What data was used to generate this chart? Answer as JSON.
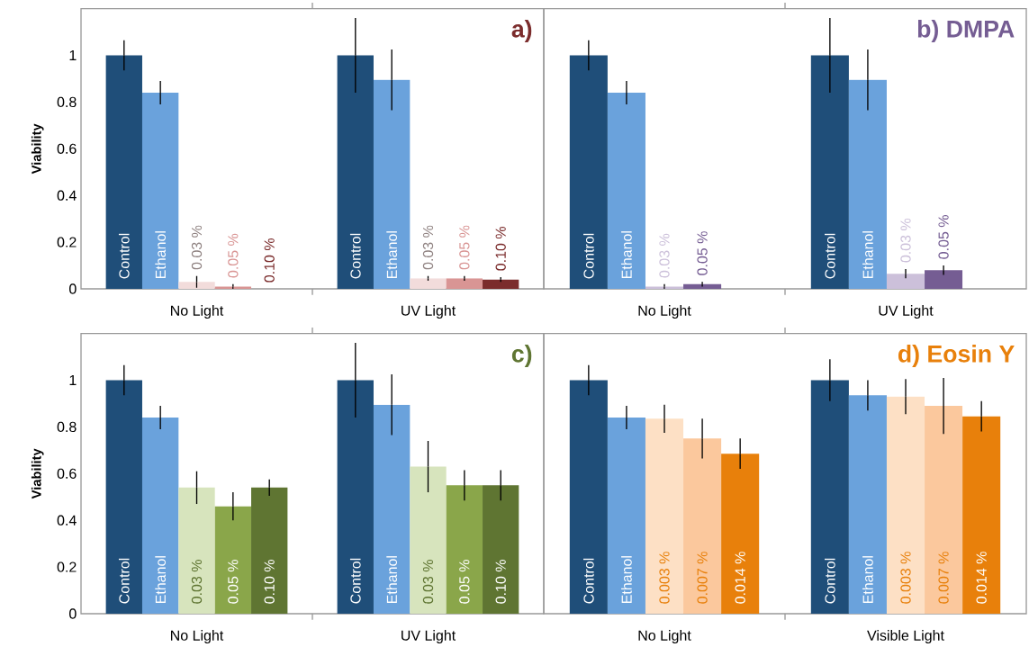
{
  "chart_data": [
    {
      "type": "bar",
      "title": "a)",
      "ylabel": "Viability",
      "categories": [
        "No Light",
        "UV Light"
      ],
      "ylim": [
        0,
        1.2
      ],
      "yticks": [
        0,
        0.2,
        0.4,
        0.6,
        0.8,
        1
      ],
      "series": [
        {
          "name": "Control",
          "color": "#1f4e79",
          "values": [
            1,
            1
          ],
          "errors": [
            0.065,
            0.16
          ]
        },
        {
          "name": "Ethanol",
          "color": "#6aa2dc",
          "values": [
            0.84,
            0.895
          ],
          "errors": [
            0.05,
            0.13
          ]
        },
        {
          "name": "0.03 %",
          "color": "#f2dcdb",
          "values": [
            0.03,
            0.045
          ],
          "errors": [
            0.025,
            0.01
          ]
        },
        {
          "name": "0.05 %",
          "color": "#d99594",
          "values": [
            0.01,
            0.045
          ],
          "errors": [
            0.01,
            0.01
          ]
        },
        {
          "name": "0.10 %",
          "color": "#7b2c2c",
          "values": [
            0,
            0.04
          ],
          "errors": [
            null,
            0.01
          ]
        }
      ]
    },
    {
      "type": "bar",
      "title": "b) DMPA",
      "categories": [
        "No Light",
        "UV Light"
      ],
      "ylim": [
        0,
        1.2
      ],
      "yticks": [
        0,
        0.2,
        0.4,
        0.6,
        0.8,
        1
      ],
      "tick_labels": "x",
      "series": [
        {
          "name": "Control",
          "color": "#1f4e79",
          "values": [
            1,
            1
          ],
          "errors": [
            0.065,
            0.16
          ]
        },
        {
          "name": "Ethanol",
          "color": "#6aa2dc",
          "values": [
            0.84,
            0.895
          ],
          "errors": [
            0.05,
            0.13
          ]
        },
        {
          "name": "0.03 %",
          "color": "#ccc0da",
          "values": [
            0.01,
            0.065
          ],
          "errors": [
            0.01,
            0.02
          ]
        },
        {
          "name": "0.05 %",
          "color": "#755d93",
          "values": [
            0.02,
            0.08
          ],
          "errors": [
            0.01,
            0.02
          ]
        }
      ]
    },
    {
      "type": "bar",
      "title": "c)",
      "ylabel": "Viability",
      "categories": [
        "No Light",
        "UV Light"
      ],
      "ylim": [
        0,
        1.2
      ],
      "yticks": [
        0,
        0.2,
        0.4,
        0.6,
        0.8,
        1
      ],
      "series": [
        {
          "name": "Control",
          "color": "#1f4e79",
          "values": [
            1,
            1
          ],
          "errors": [
            0.065,
            0.16
          ]
        },
        {
          "name": "Ethanol",
          "color": "#6aa2dc",
          "values": [
            0.84,
            0.895
          ],
          "errors": [
            0.05,
            0.13
          ]
        },
        {
          "name": "0.03 %",
          "color": "#d7e4bd",
          "values": [
            0.54,
            0.63
          ],
          "errors": [
            0.07,
            0.11
          ]
        },
        {
          "name": "0.05 %",
          "color": "#8aa64a",
          "values": [
            0.46,
            0.55
          ],
          "errors": [
            0.06,
            0.065
          ]
        },
        {
          "name": "0.10 %",
          "color": "#5f7532",
          "values": [
            0.54,
            0.55
          ],
          "errors": [
            0.035,
            0.065
          ]
        }
      ]
    },
    {
      "type": "bar",
      "title": "d) Eosin Y",
      "categories": [
        "No Light",
        "Visible Light"
      ],
      "ylim": [
        0,
        1.2
      ],
      "yticks": [
        0,
        0.2,
        0.4,
        0.6,
        0.8,
        1
      ],
      "tick_labels": "x",
      "series": [
        {
          "name": "Control",
          "color": "#1f4e79",
          "values": [
            1,
            1
          ],
          "errors": [
            0.065,
            0.09
          ]
        },
        {
          "name": "Ethanol",
          "color": "#6aa2dc",
          "values": [
            0.84,
            0.935
          ],
          "errors": [
            0.05,
            0.065
          ]
        },
        {
          "name": "0.003 %",
          "color": "#fde0c5",
          "values": [
            0.835,
            0.93
          ],
          "errors": [
            0.06,
            0.075
          ]
        },
        {
          "name": "0.007 %",
          "color": "#fbc89d",
          "values": [
            0.75,
            0.89
          ],
          "errors": [
            0.085,
            0.12
          ]
        },
        {
          "name": "0.014 %",
          "color": "#e8800b",
          "values": [
            0.685,
            0.845
          ],
          "errors": [
            0.065,
            0.065
          ]
        }
      ]
    }
  ]
}
